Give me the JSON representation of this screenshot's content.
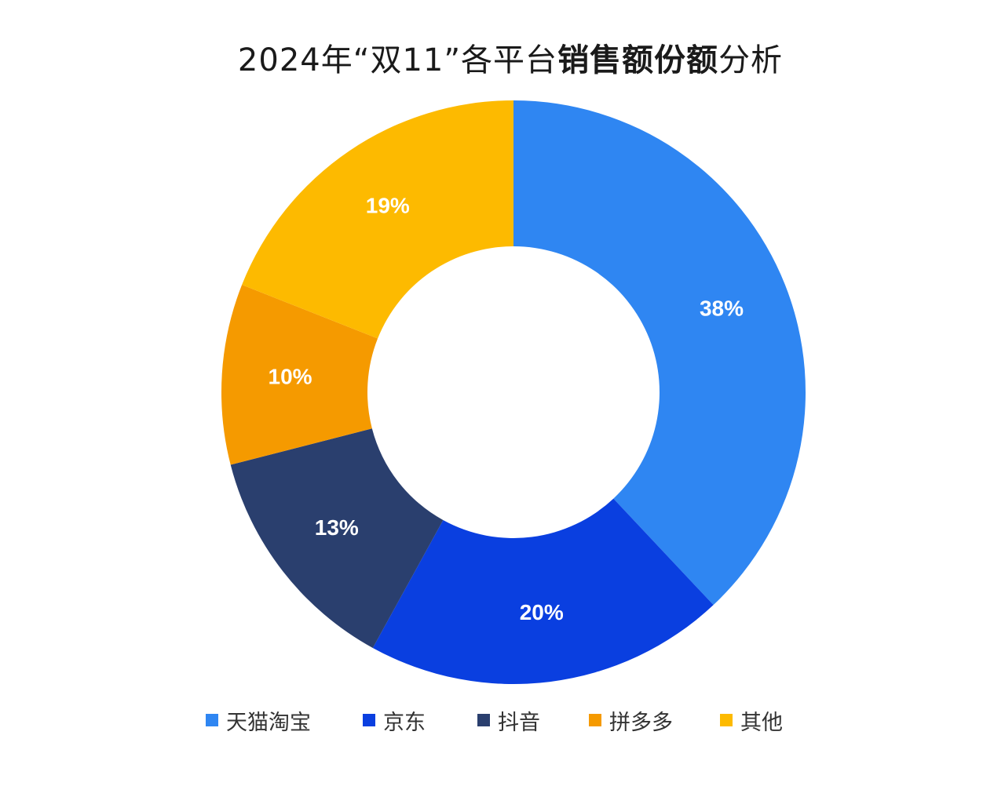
{
  "title": {
    "prefix": "2024年“双11”各平台",
    "emphasis": "销售额份额",
    "suffix": "分析"
  },
  "chart_data": {
    "type": "pie",
    "variant": "donut",
    "title": "2024年“双11”各平台销售额份额分析",
    "legend_position": "bottom",
    "slices": [
      {
        "label": "天猫淘宝",
        "value": 38,
        "display": "38%",
        "color": "#2F86F2"
      },
      {
        "label": "京东",
        "value": 20,
        "display": "20%",
        "color": "#0A3FE0"
      },
      {
        "label": "抖音",
        "value": 13,
        "display": "13%",
        "color": "#2A3F6E"
      },
      {
        "label": "拼多多",
        "value": 10,
        "display": "10%",
        "color": "#F59A00"
      },
      {
        "label": "其他",
        "value": 19,
        "display": "19%",
        "color": "#FDBA00"
      }
    ]
  }
}
